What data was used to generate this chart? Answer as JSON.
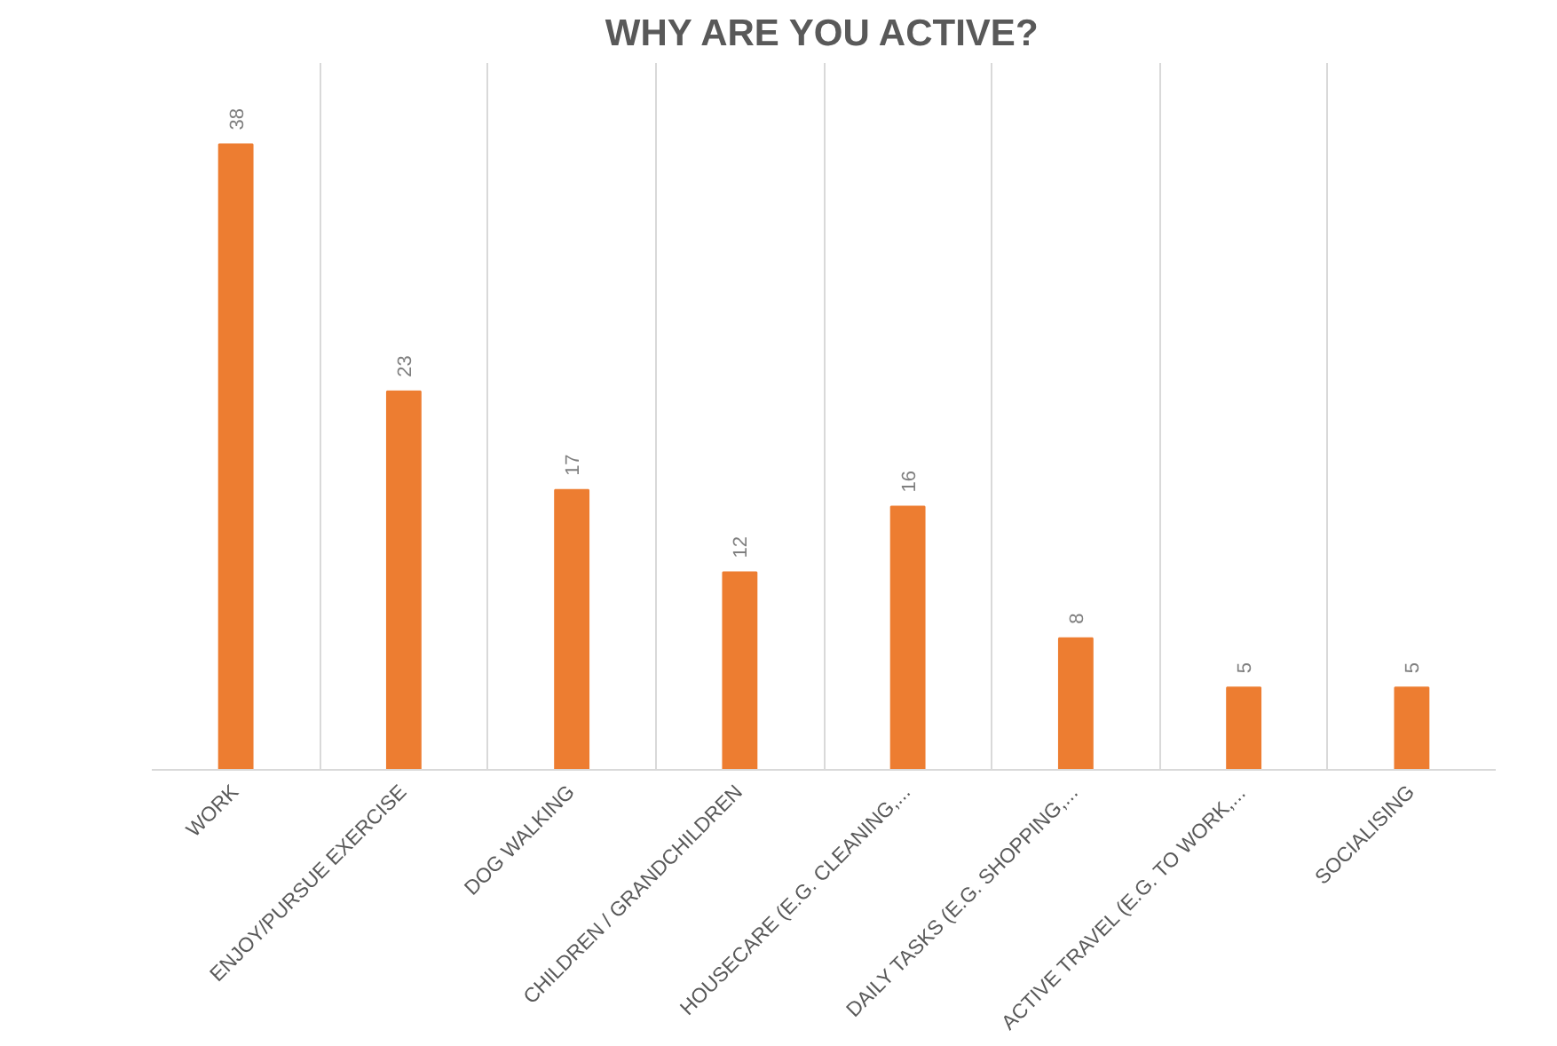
{
  "chart_data": {
    "type": "bar",
    "title": "WHY ARE YOU ACTIVE?",
    "categories": [
      "WORK",
      "ENJOY/PURSUE EXERCISE",
      "DOG WALKING",
      "CHILDREN / GRANDCHILDREN",
      "HOUSECARE (E.G. CLEANING,...",
      "DAILY TASKS (E.G. SHOPPING,...",
      "ACTIVE TRAVEL (E.G. TO WORK,...",
      "SOCIALISING"
    ],
    "values": [
      38,
      23,
      17,
      12,
      16,
      8,
      5,
      5
    ],
    "color": "#ed7d31",
    "data_labels": true,
    "grid": "x"
  }
}
